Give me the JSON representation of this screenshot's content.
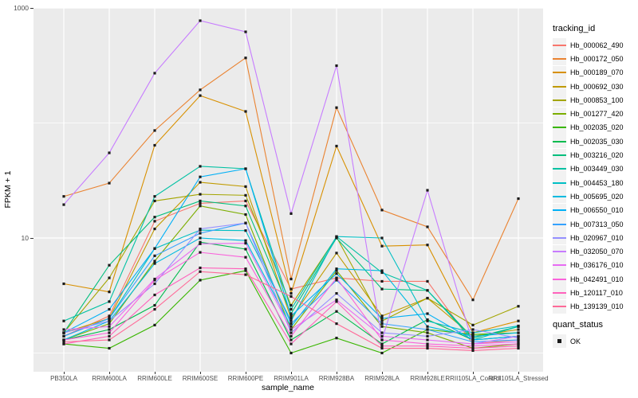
{
  "chart_data": {
    "type": "line",
    "title": "",
    "xlabel": "sample_name",
    "ylabel": "FPKM + 1",
    "yscale": "log10",
    "ylim": [
      0.7,
      1000
    ],
    "grid": true,
    "panel_background": "#EBEBEB",
    "grid_color": "#FFFFFF",
    "point_color": "#1A1A1A",
    "axis_text_color": "#4D4D4D",
    "y_major_ticks": [
      {
        "value": 10,
        "label": "10"
      },
      {
        "value": 1000,
        "label": "1000"
      }
    ],
    "y_minor_gridlines": [
      1,
      100
    ],
    "categories": [
      "PB350LA",
      "RRIM600LA",
      "RRIM600LE",
      "RRIM600SE",
      "RRIM600PE",
      "RRIM901LA",
      "RRIM928BA",
      "RRIM928LA",
      "RRIM928LE",
      "RRII105LA_Control",
      "RRII105LA_Stressed"
    ],
    "legend": {
      "title": "tracking_id",
      "position": "right"
    },
    "quant_legend": {
      "title": "quant_status",
      "items": [
        {
          "label": "OK",
          "marker": "black-square"
        }
      ]
    },
    "series": [
      {
        "name": "Hb_000062_490",
        "color": "#F8766D",
        "values": [
          1.4,
          2.1,
          14,
          20,
          21,
          3.6,
          4.5,
          4.2,
          4.2,
          1.2,
          1.3
        ]
      },
      {
        "name": "Hb_000172_050",
        "color": "#EA8331",
        "values": [
          23,
          30,
          86,
          194,
          368,
          4.4,
          136,
          17.5,
          12.5,
          2.9,
          22
        ]
      },
      {
        "name": "Hb_000189_070",
        "color": "#D89000",
        "values": [
          4.0,
          3.4,
          64,
          173,
          126,
          3.3,
          63,
          8.5,
          8.7,
          1.5,
          1.9
        ]
      },
      {
        "name": "Hb_000692_030",
        "color": "#C09B00",
        "values": [
          1.5,
          2.0,
          12,
          30.5,
          28,
          2.0,
          7.4,
          2.1,
          3.0,
          1.4,
          1.6
        ]
      },
      {
        "name": "Hb_000853_100",
        "color": "#A3A500",
        "values": [
          1.5,
          4.5,
          21,
          24,
          23.5,
          2.6,
          10.2,
          1.9,
          3.0,
          1.75,
          2.55
        ]
      },
      {
        "name": "Hb_001277_420",
        "color": "#7CAE00",
        "values": [
          1.3,
          1.8,
          6.3,
          19,
          16,
          1.6,
          5.2,
          1.7,
          1.5,
          1.1,
          1.2
        ]
      },
      {
        "name": "Hb_002035_020",
        "color": "#39B600",
        "values": [
          1.2,
          1.1,
          1.75,
          4.3,
          5.2,
          1.0,
          1.35,
          1.0,
          1.6,
          1.45,
          1.5
        ]
      },
      {
        "name": "Hb_002035_030",
        "color": "#00BB4E",
        "values": [
          1.3,
          1.6,
          2.6,
          9.2,
          8.0,
          1.3,
          2.3,
          1.2,
          1.95,
          1.3,
          1.4
        ]
      },
      {
        "name": "Hb_003216_020",
        "color": "#00BF7D",
        "values": [
          1.5,
          5.8,
          15.2,
          21,
          19,
          2.2,
          10.0,
          3.6,
          3.5,
          1.35,
          1.7
        ]
      },
      {
        "name": "Hb_003449_030",
        "color": "#00C1A3",
        "values": [
          1.9,
          2.8,
          23,
          42,
          40,
          2.4,
          10.3,
          5.0,
          3.5,
          1.3,
          1.7
        ]
      },
      {
        "name": "Hb_004453_180",
        "color": "#00BFC4",
        "values": [
          1.4,
          2.0,
          8.1,
          11.7,
          11.6,
          1.9,
          10.3,
          10.0,
          1.9,
          1.5,
          1.72
        ]
      },
      {
        "name": "Hb_005695_020",
        "color": "#00BAE0",
        "values": [
          1.3,
          1.9,
          6.0,
          10,
          9.5,
          1.7,
          5.4,
          5.2,
          1.7,
          1.4,
          1.5
        ]
      },
      {
        "name": "Hb_006550_010",
        "color": "#00B0F6",
        "values": [
          1.5,
          2.4,
          8.1,
          34,
          40,
          2.1,
          4.9,
          2.0,
          2.2,
          1.3,
          1.4
        ]
      },
      {
        "name": "Hb_007313_050",
        "color": "#35A2FF",
        "values": [
          1.4,
          2.0,
          7.0,
          11,
          13.5,
          1.8,
          4.3,
          1.8,
          1.6,
          1.25,
          1.3
        ]
      },
      {
        "name": "Hb_020967_010",
        "color": "#9590FF",
        "values": [
          1.5,
          1.9,
          4.0,
          12,
          13.5,
          1.5,
          3.3,
          1.5,
          1.4,
          1.6,
          1.35
        ]
      },
      {
        "name": "Hb_032050_070",
        "color": "#C77CFF",
        "values": [
          19.5,
          55,
          271,
          775,
          620,
          16.3,
          315,
          1.3,
          26,
          1.2,
          1.4
        ]
      },
      {
        "name": "Hb_036176_010",
        "color": "#E76BF3",
        "values": [
          1.6,
          1.7,
          4.4,
          8.9,
          9.0,
          1.6,
          2.9,
          1.4,
          1.3,
          1.2,
          1.25
        ]
      },
      {
        "name": "Hb_042491_010",
        "color": "#FA62DB",
        "values": [
          1.3,
          1.5,
          4.3,
          7.5,
          6.8,
          1.4,
          4.5,
          1.3,
          1.2,
          1.15,
          1.2
        ]
      },
      {
        "name": "Hb_120117_010",
        "color": "#FF62BC",
        "values": [
          1.2,
          1.4,
          3.2,
          5.5,
          5.4,
          1.2,
          2.8,
          1.15,
          1.15,
          1.1,
          1.15
        ]
      },
      {
        "name": "Hb_139139_010",
        "color": "#FF6A98",
        "values": [
          1.25,
          1.3,
          2.4,
          5.1,
          4.8,
          3.1,
          1.8,
          1.1,
          1.1,
          1.05,
          1.1
        ]
      }
    ]
  }
}
